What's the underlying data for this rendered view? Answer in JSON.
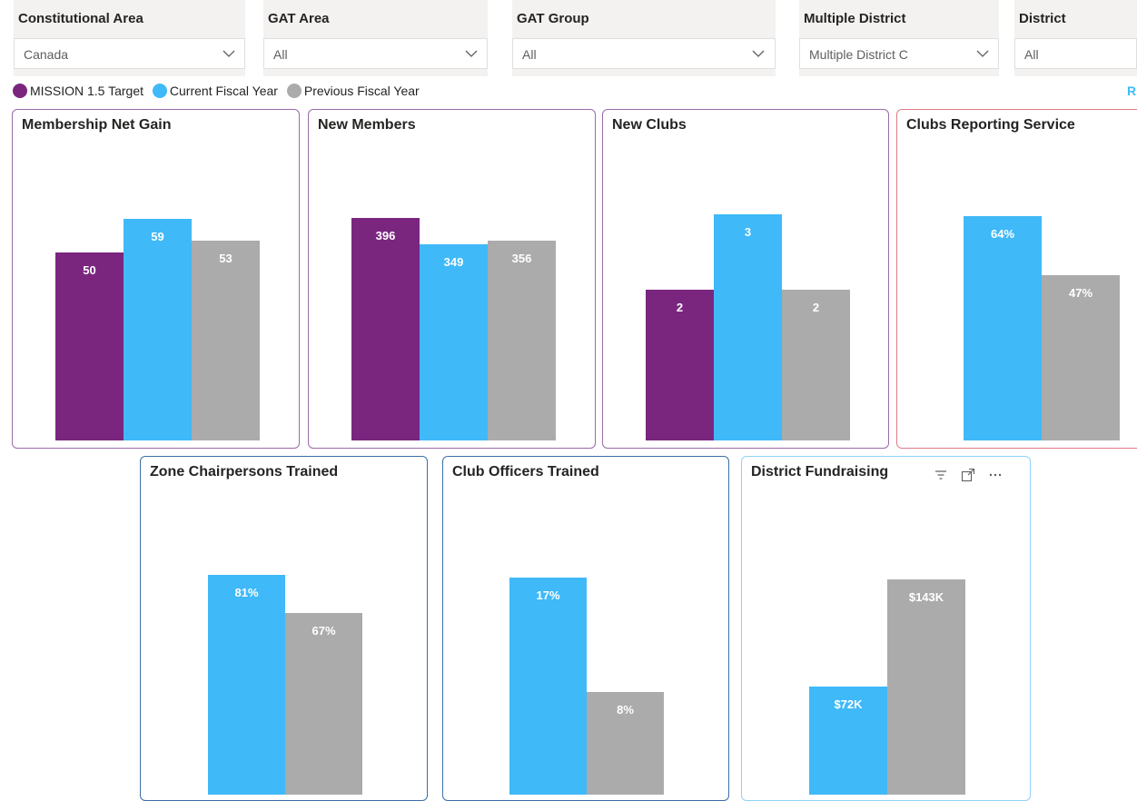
{
  "colors": {
    "mission_target": "#7a267f",
    "current_fy": "#3fb9f8",
    "previous_fy": "#ababab",
    "right_edge_letter": "#3fb9f8"
  },
  "filters": [
    {
      "title": "Constitutional Area",
      "value": "Canada"
    },
    {
      "title": "GAT Area",
      "value": "All"
    },
    {
      "title": "GAT Group",
      "value": "All"
    },
    {
      "title": "Multiple District",
      "value": "Multiple District C"
    },
    {
      "title": "District",
      "value": "All"
    }
  ],
  "legend": {
    "items": [
      {
        "label": "MISSION 1.5 Target",
        "series": "mission_target"
      },
      {
        "label": "Current Fiscal Year",
        "series": "current_fy"
      },
      {
        "label": "Previous Fiscal Year",
        "series": "previous_fy"
      }
    ],
    "right_edge_text": "R"
  },
  "visual_toolbar": {
    "icons": [
      "filter-icon",
      "focus-mode-icon",
      "more-options-icon"
    ]
  },
  "chart_data": [
    {
      "type": "bar",
      "title": "Membership Net Gain",
      "categories": [
        "MISSION 1.5 Target",
        "Current Fiscal Year",
        "Previous Fiscal Year"
      ],
      "values": [
        50,
        59,
        53
      ],
      "labels": [
        "50",
        "59",
        "53"
      ],
      "ylim": [
        0,
        70
      ]
    },
    {
      "type": "bar",
      "title": "New Members",
      "categories": [
        "MISSION 1.5 Target",
        "Current Fiscal Year",
        "Previous Fiscal Year"
      ],
      "values": [
        396,
        349,
        356
      ],
      "labels": [
        "396",
        "349",
        "356"
      ],
      "ylim": [
        0,
        469
      ]
    },
    {
      "type": "bar",
      "title": "New Clubs",
      "categories": [
        "MISSION 1.5 Target",
        "Current Fiscal Year",
        "Previous Fiscal Year"
      ],
      "values": [
        2,
        3,
        2
      ],
      "labels": [
        "2",
        "3",
        "2"
      ],
      "ylim": [
        0,
        3.5
      ]
    },
    {
      "type": "bar",
      "title": "Clubs Reporting Service",
      "categories": [
        "Current Fiscal Year",
        "Previous Fiscal Year"
      ],
      "values": [
        64,
        47
      ],
      "labels": [
        "64%",
        "47%"
      ],
      "ylim": [
        0,
        75
      ]
    },
    {
      "type": "bar",
      "title": "Zone Chairpersons Trained",
      "categories": [
        "Current Fiscal Year",
        "Previous Fiscal Year"
      ],
      "values": [
        81,
        67
      ],
      "labels": [
        "81%",
        "67%"
      ],
      "ylim": [
        0,
        97
      ]
    },
    {
      "type": "bar",
      "title": "Club Officers Trained",
      "categories": [
        "Current Fiscal Year",
        "Previous Fiscal Year"
      ],
      "values": [
        17,
        8
      ],
      "labels": [
        "17%",
        "8%"
      ],
      "ylim": [
        0,
        20.6
      ]
    },
    {
      "type": "bar",
      "title": "District Fundraising",
      "categories": [
        "Current Fiscal Year",
        "Previous Fiscal Year"
      ],
      "values": [
        72,
        143
      ],
      "labels": [
        "$72K",
        "$143K"
      ],
      "ylim": [
        0,
        175
      ]
    }
  ]
}
